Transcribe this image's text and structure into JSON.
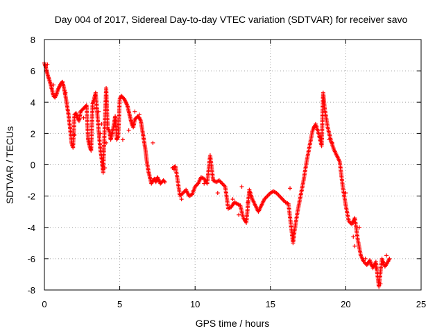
{
  "chart_data": {
    "type": "scatter",
    "title": "Day 004 of 2017, Sidereal Day-to-day VTEC variation (SDTVAR) for receiver savo",
    "xlabel": "GPS time / hours",
    "ylabel": "SDTVAR / TECUs",
    "xlim": [
      0,
      25
    ],
    "ylim": [
      -8,
      8
    ],
    "xticks": [
      0,
      5,
      10,
      15,
      20,
      25
    ],
    "yticks": [
      -8,
      -6,
      -4,
      -2,
      0,
      2,
      4,
      6,
      8
    ],
    "grid": true,
    "marker": "+",
    "color": "#ff0000",
    "series": [
      {
        "name": "SDTVAR",
        "x": [
          0.0,
          0.1,
          0.2,
          0.3,
          0.4,
          0.5,
          0.6,
          0.7,
          0.8,
          0.9,
          1.0,
          1.1,
          1.2,
          1.3,
          1.4,
          1.5,
          1.6,
          1.7,
          1.8,
          1.9,
          2.0,
          2.1,
          2.2,
          2.3,
          2.4,
          2.5,
          2.6,
          2.7,
          2.8,
          2.9,
          3.0,
          3.1,
          3.2,
          3.3,
          3.4,
          3.5,
          3.6,
          3.7,
          3.8,
          3.9,
          4.0,
          4.1,
          4.2,
          4.3,
          4.4,
          4.5,
          4.6,
          4.7,
          4.8,
          4.9,
          5.0,
          5.1,
          5.2,
          5.3,
          5.4,
          5.5,
          5.6,
          5.7,
          5.8,
          5.9,
          6.0,
          6.1,
          6.2,
          6.3,
          6.4,
          6.5,
          6.6,
          6.7,
          6.8,
          6.9,
          7.0,
          7.1,
          7.2,
          7.3,
          7.4,
          7.5,
          7.6,
          7.7,
          7.8,
          7.9,
          8.0,
          8.5,
          8.7,
          9.0,
          9.2,
          9.4,
          9.6,
          9.8,
          10.0,
          10.2,
          10.4,
          10.6,
          10.8,
          11.0,
          11.2,
          11.4,
          11.6,
          11.8,
          12.0,
          12.2,
          12.4,
          12.6,
          12.8,
          13.0,
          13.2,
          13.4,
          13.6,
          13.8,
          14.0,
          14.2,
          14.4,
          14.6,
          14.8,
          15.0,
          15.2,
          15.4,
          15.6,
          15.8,
          16.0,
          16.2,
          16.5,
          16.6,
          16.8,
          17.0,
          17.2,
          17.4,
          17.6,
          17.8,
          18.0,
          18.2,
          18.4,
          18.5,
          18.6,
          18.8,
          19.0,
          19.2,
          19.4,
          19.6,
          19.8,
          20.0,
          20.2,
          20.4,
          20.6,
          20.8,
          21.0,
          21.2,
          21.4,
          21.6,
          21.8,
          22.0,
          22.2,
          22.4,
          22.6,
          22.8,
          22.9
        ],
        "y": [
          6.5,
          6.2,
          5.8,
          5.5,
          5.2,
          4.8,
          4.4,
          4.3,
          4.5,
          4.8,
          5.0,
          5.2,
          5.3,
          4.9,
          4.4,
          3.8,
          3.2,
          2.4,
          1.4,
          1.1,
          3.2,
          3.3,
          3.0,
          2.8,
          3.4,
          3.5,
          3.6,
          3.7,
          3.8,
          1.6,
          1.2,
          0.9,
          3.9,
          4.2,
          4.6,
          3.4,
          2.2,
          1.1,
          0.4,
          -0.5,
          2.4,
          4.9,
          2.3,
          2.2,
          1.6,
          2.0,
          2.5,
          3.1,
          1.6,
          1.8,
          4.2,
          4.4,
          4.3,
          4.2,
          4.0,
          3.8,
          3.4,
          3.0,
          2.6,
          2.4,
          2.9,
          3.0,
          3.1,
          3.0,
          2.8,
          2.2,
          1.6,
          1.0,
          0.2,
          -0.4,
          -0.8,
          -1.2,
          -1.0,
          -0.9,
          -1.1,
          -0.8,
          -1.0,
          -1.2,
          -1.1,
          -1.0,
          -1.1,
          -0.2,
          -0.1,
          -2.0,
          -1.8,
          -1.6,
          -2.0,
          -1.9,
          -1.4,
          -1.2,
          -0.8,
          -0.9,
          -1.2,
          0.6,
          -1.0,
          -1.1,
          -1.0,
          -1.2,
          -1.4,
          -2.8,
          -2.7,
          -2.4,
          -2.5,
          -2.6,
          -3.4,
          -3.7,
          -1.6,
          -2.2,
          -2.6,
          -3.0,
          -2.6,
          -2.2,
          -2.0,
          -1.8,
          -1.7,
          -1.8,
          -2.0,
          -2.2,
          -2.4,
          -2.5,
          -5.0,
          -4.2,
          -3.0,
          -2.0,
          -1.0,
          0.2,
          1.2,
          2.2,
          2.6,
          2.0,
          1.2,
          4.6,
          3.6,
          2.4,
          1.6,
          1.0,
          0.6,
          0.2,
          -1.4,
          -2.6,
          -3.6,
          -3.8,
          -3.4,
          -4.8,
          -5.8,
          -6.2,
          -6.4,
          -6.1,
          -6.6,
          -6.2,
          -7.8,
          -6.0,
          -6.5,
          -6.2,
          -6.0
        ],
        "extra_points": {
          "x": [
            0.2,
            0.6,
            1.4,
            2.0,
            2.6,
            3.3,
            3.6,
            3.7,
            3.8,
            4.0,
            4.1,
            4.2,
            5.2,
            5.6,
            6.0,
            6.3,
            7.2,
            8.6,
            9.1,
            10.6,
            11.5,
            12.5,
            12.9,
            13.1,
            13.5,
            16.3,
            17.9,
            18.3,
            18.9,
            19.1,
            20.0,
            20.5,
            20.6,
            20.9,
            21.3,
            21.7,
            22.0,
            22.3,
            22.7
          ],
          "y": [
            6.4,
            5.1,
            4.6,
            1.9,
            3.0,
            3.6,
            3.4,
            2.0,
            2.6,
            -0.2,
            1.4,
            2.6,
            1.6,
            2.2,
            3.4,
            3.2,
            1.4,
            -0.3,
            -2.2,
            -1.2,
            -1.8,
            -2.2,
            -3.2,
            -1.4,
            -2.4,
            -1.5,
            2.4,
            1.8,
            1.6,
            1.4,
            -1.8,
            -4.6,
            -5.2,
            -4.0,
            -6.0,
            -6.4,
            -6.6,
            -7.6,
            -5.8
          ]
        }
      }
    ]
  }
}
